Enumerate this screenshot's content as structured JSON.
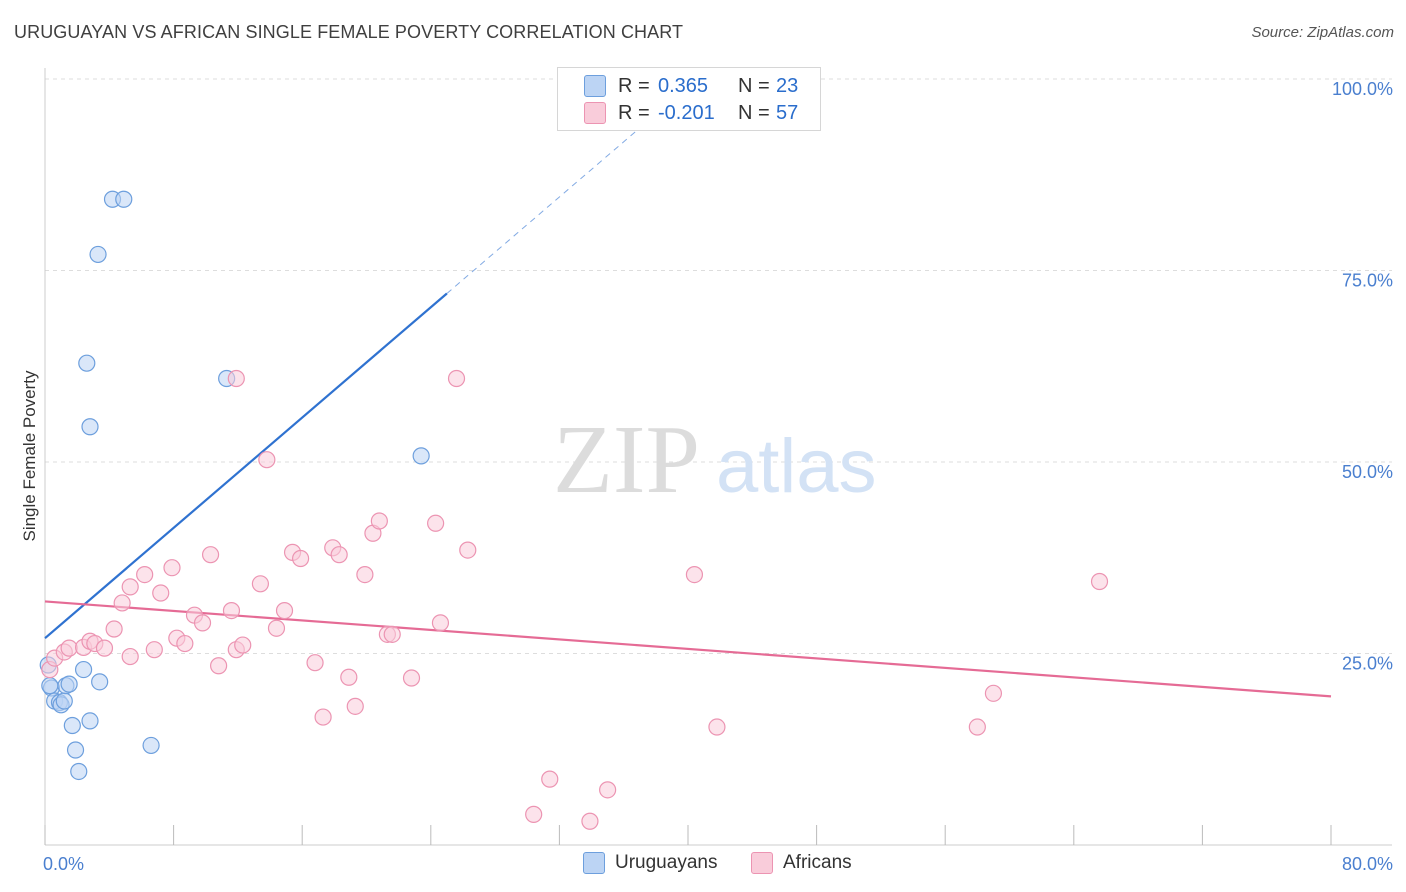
{
  "title": "URUGUAYAN VS AFRICAN SINGLE FEMALE POVERTY CORRELATION CHART",
  "source": "Source: ZipAtlas.com",
  "watermark": {
    "zip": "ZIP",
    "atlas": "atlas"
  },
  "legend": {
    "r_label": "R =",
    "n_label": "N =",
    "uruguayans": {
      "r": "0.365",
      "n": "23"
    },
    "africans": {
      "r": "-0.201",
      "n": "57"
    }
  },
  "colors": {
    "blue_fill": "#bcd4f4",
    "blue_stroke": "#6d9fdd",
    "blue_line": "#2f72d0",
    "pink_fill": "#f9ccda",
    "pink_stroke": "#ec94b2",
    "pink_line": "#e56b95",
    "axis_text": "#4a7fcf",
    "grid": "#dddddd"
  },
  "chart_data": {
    "type": "scatter",
    "title": "URUGUAYAN VS AFRICAN SINGLE FEMALE POVERTY CORRELATION CHART",
    "xlabel": "",
    "ylabel": "Single Female Poverty",
    "xlim": [
      0,
      80
    ],
    "ylim": [
      0,
      100
    ],
    "x_tick_labels": [
      "0.0%",
      "80.0%"
    ],
    "y_ticks": [
      25,
      50,
      75,
      100
    ],
    "y_tick_labels": [
      "25.0%",
      "50.0%",
      "75.0%",
      "100.0%"
    ],
    "x_minor_ticks": [
      0,
      8,
      16,
      24,
      32,
      40,
      48,
      56,
      64,
      72,
      80
    ],
    "series": [
      {
        "name": "Uruguayans",
        "color": "blue",
        "points": [
          [
            4.2,
            84.3
          ],
          [
            4.9,
            84.3
          ],
          [
            3.3,
            77.1
          ],
          [
            2.6,
            62.9
          ],
          [
            2.8,
            54.6
          ],
          [
            11.3,
            60.9
          ],
          [
            23.4,
            50.8
          ],
          [
            0.4,
            20.5
          ],
          [
            0.6,
            18.8
          ],
          [
            0.9,
            18.6
          ],
          [
            1.0,
            18.3
          ],
          [
            1.2,
            18.8
          ],
          [
            1.3,
            20.8
          ],
          [
            1.5,
            21.0
          ],
          [
            2.4,
            22.9
          ],
          [
            3.4,
            21.3
          ],
          [
            1.7,
            15.6
          ],
          [
            2.8,
            16.2
          ],
          [
            1.9,
            12.4
          ],
          [
            2.1,
            9.6
          ],
          [
            6.6,
            13.0
          ],
          [
            0.2,
            23.5
          ],
          [
            0.3,
            20.8
          ]
        ],
        "trend": {
          "x": [
            0,
            25.0
          ],
          "y": [
            27.0,
            72.0
          ],
          "dashed_to": [
            40,
            99.0
          ]
        }
      },
      {
        "name": "Africans",
        "color": "pink",
        "points": [
          [
            0.3,
            22.9
          ],
          [
            0.6,
            24.4
          ],
          [
            1.2,
            25.2
          ],
          [
            1.5,
            25.7
          ],
          [
            2.4,
            25.8
          ],
          [
            2.8,
            26.6
          ],
          [
            3.1,
            26.3
          ],
          [
            3.7,
            25.7
          ],
          [
            4.3,
            28.2
          ],
          [
            4.8,
            31.6
          ],
          [
            5.3,
            33.7
          ],
          [
            5.3,
            24.6
          ],
          [
            6.2,
            35.3
          ],
          [
            6.8,
            25.5
          ],
          [
            7.2,
            32.9
          ],
          [
            7.9,
            36.2
          ],
          [
            8.2,
            27.0
          ],
          [
            8.7,
            26.3
          ],
          [
            9.3,
            30.0
          ],
          [
            9.8,
            29.0
          ],
          [
            10.3,
            37.9
          ],
          [
            10.8,
            23.4
          ],
          [
            11.6,
            30.6
          ],
          [
            11.9,
            25.5
          ],
          [
            12.3,
            26.1
          ],
          [
            11.9,
            60.9
          ],
          [
            13.8,
            50.3
          ],
          [
            13.4,
            34.1
          ],
          [
            14.4,
            28.3
          ],
          [
            14.9,
            30.6
          ],
          [
            15.4,
            38.2
          ],
          [
            15.9,
            37.4
          ],
          [
            16.8,
            23.8
          ],
          [
            17.3,
            16.7
          ],
          [
            17.9,
            38.8
          ],
          [
            18.3,
            37.9
          ],
          [
            18.9,
            21.9
          ],
          [
            19.3,
            18.1
          ],
          [
            19.9,
            35.3
          ],
          [
            20.4,
            40.7
          ],
          [
            20.8,
            42.3
          ],
          [
            21.3,
            27.5
          ],
          [
            21.6,
            27.5
          ],
          [
            22.8,
            21.8
          ],
          [
            24.3,
            42.0
          ],
          [
            24.6,
            29.0
          ],
          [
            25.6,
            60.9
          ],
          [
            26.3,
            38.5
          ],
          [
            30.4,
            4.0
          ],
          [
            31.4,
            8.6
          ],
          [
            33.9,
            3.1
          ],
          [
            35.0,
            7.2
          ],
          [
            40.4,
            35.3
          ],
          [
            41.8,
            15.4
          ],
          [
            58.0,
            15.4
          ],
          [
            59.0,
            19.8
          ],
          [
            65.6,
            34.4
          ]
        ],
        "trend": {
          "x": [
            0,
            80
          ],
          "y": [
            31.8,
            19.4
          ]
        }
      }
    ]
  }
}
